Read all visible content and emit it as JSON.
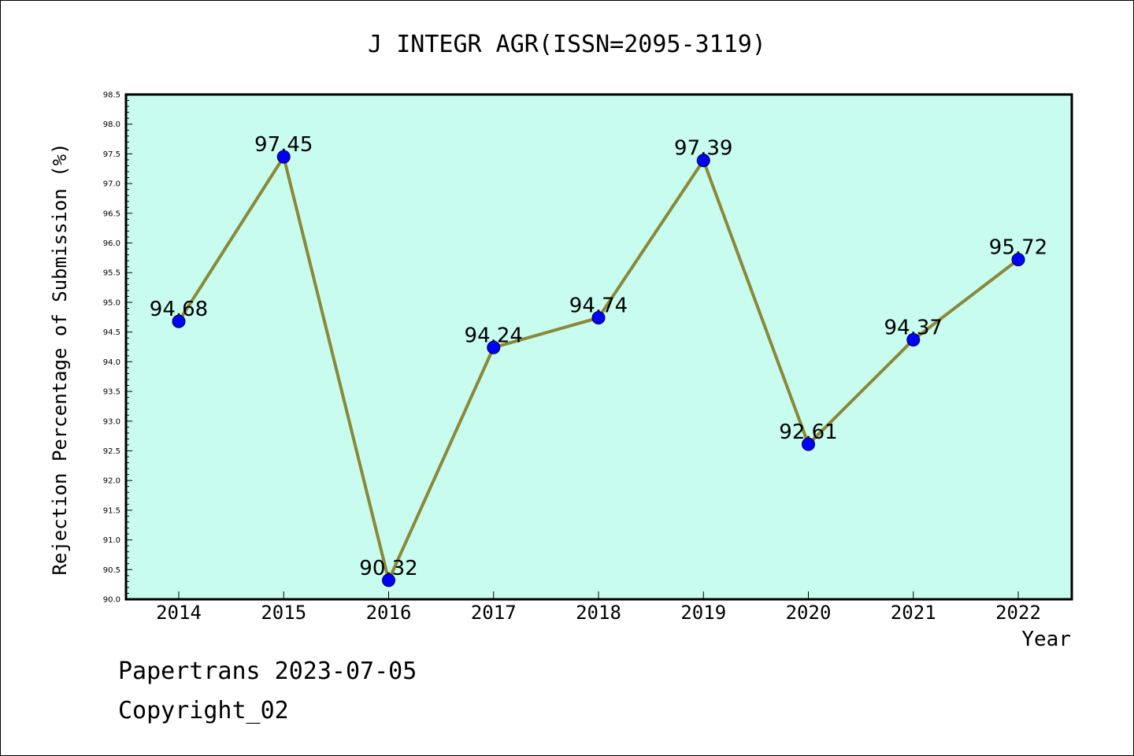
{
  "chart_data": {
    "type": "line",
    "title": "J INTEGR AGR(ISSN=2095-3119)",
    "xlabel": "Year",
    "ylabel": "Rejection Percentage of Submission (%)",
    "categories": [
      "2014",
      "2015",
      "2016",
      "2017",
      "2018",
      "2019",
      "2020",
      "2021",
      "2022"
    ],
    "values": [
      94.68,
      97.45,
      90.32,
      94.24,
      94.74,
      97.39,
      92.61,
      94.37,
      95.72
    ],
    "data_labels": [
      "94.68",
      "97.45",
      "90.32",
      "94.24",
      "94.74",
      "97.39",
      "92.61",
      "94.37",
      "95.72"
    ],
    "ylim": [
      90.0,
      98.5
    ],
    "yticks": [
      "90.0",
      "90.5",
      "91.0",
      "91.5",
      "92.0",
      "92.5",
      "93.0",
      "93.5",
      "94.0",
      "94.5",
      "95.0",
      "95.5",
      "96.0",
      "96.5",
      "97.0",
      "97.5",
      "98.0",
      "98.5"
    ],
    "grid": false,
    "colors": {
      "plot_background": "#c8fcee",
      "line": "#8b8838",
      "marker": "#0000ff"
    }
  },
  "footer": {
    "line1": "Papertrans 2023-07-05",
    "line2": "Copyright_02"
  }
}
